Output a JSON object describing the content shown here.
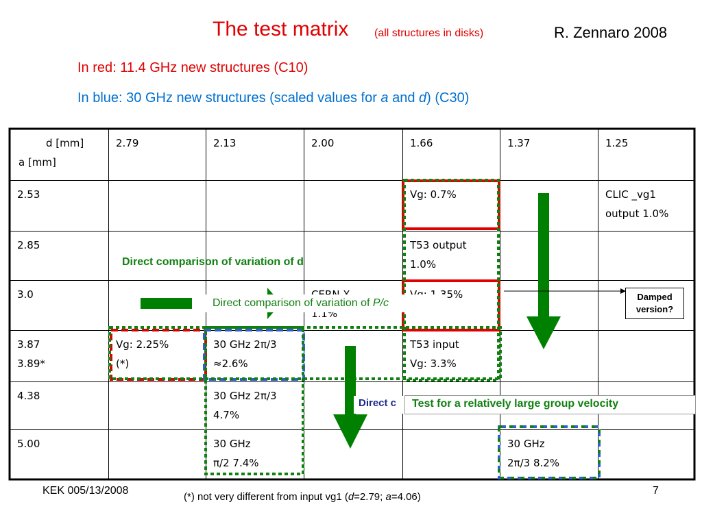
{
  "header": {
    "title": "The test matrix",
    "title_note": "(all structures in disks)",
    "author": "R. Zennaro 2008",
    "line_red": "In red: 11.4 GHz new structures (C10)",
    "line_blue": [
      "In blue: 30 GHz new structures (scaled values for ",
      "a",
      " and ",
      "d",
      ") (C30)"
    ]
  },
  "table": {
    "rows": [
      [
        [
          "d [mm]",
          "a [mm]"
        ],
        [
          "2.79"
        ],
        [
          "2.13"
        ],
        [
          "2.00"
        ],
        [
          "1.66"
        ],
        [
          "1.37"
        ],
        [
          "1.25"
        ]
      ],
      [
        [
          "2.53"
        ],
        [],
        [],
        [],
        [
          "Vg: 0.7%"
        ],
        [],
        [
          "CLIC _vg1",
          "output 1.0%"
        ]
      ],
      [
        [
          "2.85"
        ],
        [],
        [],
        [],
        [
          "T53 output",
          "1.0%"
        ],
        [],
        []
      ],
      [
        [
          "3.0"
        ],
        [],
        [],
        [
          "CERN-X",
          "1.1%"
        ],
        [
          "Vg: 1.35%"
        ],
        [],
        []
      ],
      [
        [
          "3.87",
          "3.89*"
        ],
        [
          "Vg: 2.25%",
          "(*)"
        ],
        [
          "30 GHz 2π/3",
          "≈2.6%"
        ],
        [],
        [
          "T53 input",
          "Vg: 3.3%"
        ],
        [],
        []
      ],
      [
        [
          "4.38"
        ],
        [],
        [
          "30 GHz 2π/3",
          "4.7%"
        ],
        [],
        [],
        [],
        []
      ],
      [
        [
          "5.00"
        ],
        [],
        [
          "30 GHz",
          "π/2 7.4%"
        ],
        [],
        [],
        [
          "30 GHz",
          "2π/3 8.2%"
        ],
        []
      ]
    ]
  },
  "annotations": {
    "variation_d": "Direct comparison of variation of d",
    "variation_pc": [
      "Direct comparison of variation of ",
      "P/c"
    ],
    "damped": [
      "Damped",
      "version?"
    ],
    "direct_cut": "Direct c",
    "large_vg": "Test for a relatively large group velocity"
  },
  "footer": {
    "left": "KEK 005/13/2008",
    "note": [
      "(*) not very different from input vg1 (",
      "d",
      "=2.79; ",
      "a",
      "=4.06)"
    ],
    "page": "7"
  }
}
